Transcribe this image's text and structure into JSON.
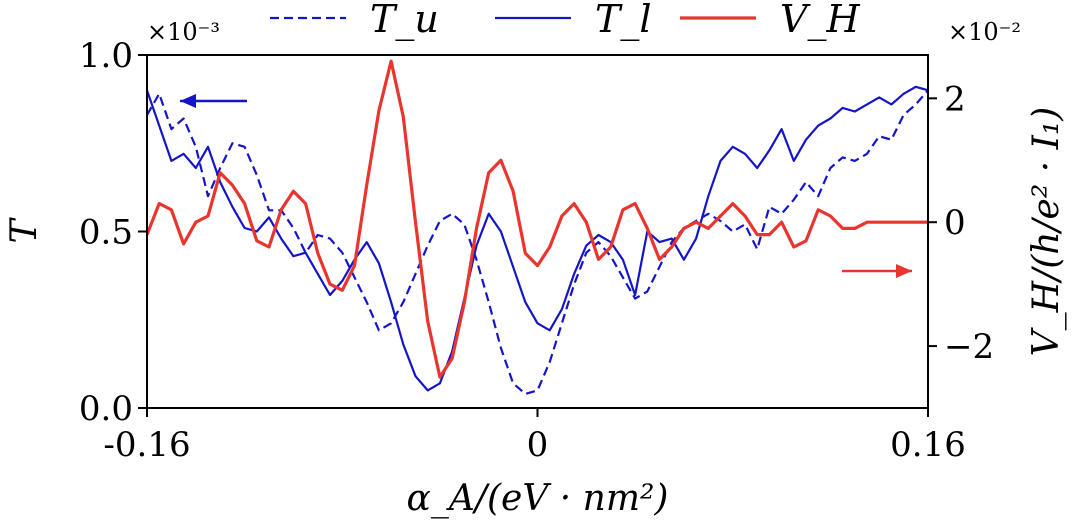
{
  "chart_data": {
    "type": "line",
    "x_label": "α_A/(eV · nm²)",
    "x_ticks": [
      "-0.16",
      "0",
      "0.16"
    ],
    "x_tick_values": [
      -0.16,
      0,
      0.16
    ],
    "xlim": [
      -0.16,
      0.16
    ],
    "y_left_label": "T",
    "y_left_scale_note": "×10⁻³",
    "y_left_ticks": [
      "0.0",
      "0.5",
      "1.0"
    ],
    "y_left_tick_values": [
      0.0,
      0.5,
      1.0
    ],
    "ylim_left": [
      0.0,
      1.0
    ],
    "y_right_label": "V_H/(h/e² · I₁)",
    "y_right_scale_note": "×10⁻²",
    "y_right_ticks": [
      "−2",
      "0",
      "2"
    ],
    "y_right_tick_values": [
      -2,
      0,
      2
    ],
    "ylim_right": [
      -3.0,
      2.7
    ],
    "grid": false,
    "legend_position": "top",
    "legend": [
      {
        "name": "T_u",
        "style": "dashed",
        "color": "#1515c8",
        "axis": "left"
      },
      {
        "name": "T_l",
        "style": "solid",
        "color": "#1515c8",
        "axis": "left"
      },
      {
        "name": "V_H",
        "style": "solid",
        "color": "#e8352e",
        "axis": "right"
      }
    ],
    "annotations": [
      {
        "type": "arrow",
        "direction": "left",
        "color": "#1515c8",
        "meaning": "T series use left axis"
      },
      {
        "type": "arrow",
        "direction": "right",
        "color": "#e8352e",
        "meaning": "V_H uses right axis"
      }
    ],
    "series": [
      {
        "name": "T_u",
        "axis": "left",
        "x": [
          -0.16,
          -0.155,
          -0.15,
          -0.145,
          -0.14,
          -0.135,
          -0.13,
          -0.125,
          -0.12,
          -0.115,
          -0.11,
          -0.105,
          -0.1,
          -0.095,
          -0.09,
          -0.085,
          -0.08,
          -0.075,
          -0.07,
          -0.065,
          -0.06,
          -0.055,
          -0.05,
          -0.045,
          -0.04,
          -0.035,
          -0.03,
          -0.025,
          -0.02,
          -0.015,
          -0.01,
          -0.005,
          0,
          0.005,
          0.01,
          0.015,
          0.02,
          0.025,
          0.03,
          0.035,
          0.04,
          0.045,
          0.05,
          0.055,
          0.06,
          0.065,
          0.07,
          0.075,
          0.08,
          0.085,
          0.09,
          0.095,
          0.1,
          0.105,
          0.11,
          0.115,
          0.12,
          0.125,
          0.13,
          0.135,
          0.14,
          0.145,
          0.15,
          0.155,
          0.16
        ],
        "y": [
          0.83,
          0.89,
          0.79,
          0.82,
          0.74,
          0.6,
          0.68,
          0.75,
          0.74,
          0.66,
          0.56,
          0.56,
          0.51,
          0.44,
          0.49,
          0.48,
          0.44,
          0.37,
          0.3,
          0.22,
          0.24,
          0.3,
          0.38,
          0.46,
          0.53,
          0.55,
          0.52,
          0.42,
          0.3,
          0.17,
          0.07,
          0.04,
          0.05,
          0.13,
          0.24,
          0.35,
          0.44,
          0.47,
          0.43,
          0.37,
          0.31,
          0.33,
          0.4,
          0.47,
          0.51,
          0.53,
          0.55,
          0.53,
          0.5,
          0.52,
          0.45,
          0.57,
          0.55,
          0.59,
          0.64,
          0.6,
          0.68,
          0.71,
          0.7,
          0.72,
          0.77,
          0.76,
          0.83,
          0.86,
          0.9
        ]
      },
      {
        "name": "T_l",
        "axis": "left",
        "x": [
          -0.16,
          -0.155,
          -0.15,
          -0.145,
          -0.14,
          -0.135,
          -0.13,
          -0.125,
          -0.12,
          -0.115,
          -0.11,
          -0.105,
          -0.1,
          -0.095,
          -0.09,
          -0.085,
          -0.08,
          -0.075,
          -0.07,
          -0.065,
          -0.06,
          -0.055,
          -0.05,
          -0.045,
          -0.04,
          -0.035,
          -0.03,
          -0.025,
          -0.02,
          -0.015,
          -0.01,
          -0.005,
          0,
          0.005,
          0.01,
          0.015,
          0.02,
          0.025,
          0.03,
          0.035,
          0.04,
          0.045,
          0.05,
          0.055,
          0.06,
          0.065,
          0.07,
          0.075,
          0.08,
          0.085,
          0.09,
          0.095,
          0.1,
          0.105,
          0.11,
          0.115,
          0.12,
          0.125,
          0.13,
          0.135,
          0.14,
          0.145,
          0.15,
          0.155,
          0.16
        ],
        "y": [
          0.9,
          0.8,
          0.7,
          0.72,
          0.68,
          0.74,
          0.64,
          0.57,
          0.51,
          0.5,
          0.54,
          0.48,
          0.43,
          0.44,
          0.38,
          0.32,
          0.36,
          0.42,
          0.47,
          0.41,
          0.3,
          0.18,
          0.09,
          0.05,
          0.07,
          0.16,
          0.31,
          0.46,
          0.55,
          0.5,
          0.4,
          0.3,
          0.24,
          0.22,
          0.28,
          0.38,
          0.46,
          0.49,
          0.47,
          0.42,
          0.32,
          0.5,
          0.47,
          0.48,
          0.42,
          0.48,
          0.6,
          0.7,
          0.74,
          0.72,
          0.68,
          0.73,
          0.79,
          0.7,
          0.76,
          0.8,
          0.82,
          0.85,
          0.84,
          0.86,
          0.88,
          0.86,
          0.89,
          0.91,
          0.9
        ]
      },
      {
        "name": "V_H",
        "axis": "right",
        "x": [
          -0.16,
          -0.155,
          -0.15,
          -0.145,
          -0.14,
          -0.135,
          -0.13,
          -0.125,
          -0.12,
          -0.115,
          -0.11,
          -0.105,
          -0.1,
          -0.095,
          -0.09,
          -0.085,
          -0.08,
          -0.075,
          -0.07,
          -0.065,
          -0.06,
          -0.055,
          -0.05,
          -0.045,
          -0.04,
          -0.035,
          -0.03,
          -0.025,
          -0.02,
          -0.015,
          -0.01,
          -0.005,
          0,
          0.005,
          0.01,
          0.015,
          0.02,
          0.025,
          0.03,
          0.035,
          0.04,
          0.045,
          0.05,
          0.055,
          0.06,
          0.065,
          0.07,
          0.075,
          0.08,
          0.085,
          0.09,
          0.095,
          0.1,
          0.105,
          0.11,
          0.115,
          0.12,
          0.125,
          0.13,
          0.135,
          0.14,
          0.145,
          0.15,
          0.155,
          0.16
        ],
        "y": [
          -0.2,
          0.3,
          0.2,
          -0.35,
          0.0,
          0.1,
          0.8,
          0.6,
          0.3,
          -0.3,
          -0.4,
          0.2,
          0.5,
          0.3,
          -0.5,
          -1.0,
          -1.1,
          -0.7,
          0.6,
          1.8,
          2.6,
          1.7,
          0.0,
          -1.6,
          -2.5,
          -2.2,
          -1.3,
          -0.1,
          0.8,
          1.0,
          0.5,
          -0.5,
          -0.7,
          -0.4,
          0.1,
          0.3,
          0.0,
          -0.6,
          -0.4,
          0.2,
          0.3,
          -0.1,
          -0.6,
          -0.4,
          -0.1,
          0.0,
          -0.1,
          0.1,
          0.3,
          0.1,
          -0.2,
          -0.2,
          0.0,
          -0.4,
          -0.3,
          0.2,
          0.1,
          -0.1,
          -0.1,
          0.0,
          0.0,
          0.0,
          0.0,
          0.0,
          0.0
        ]
      }
    ]
  }
}
